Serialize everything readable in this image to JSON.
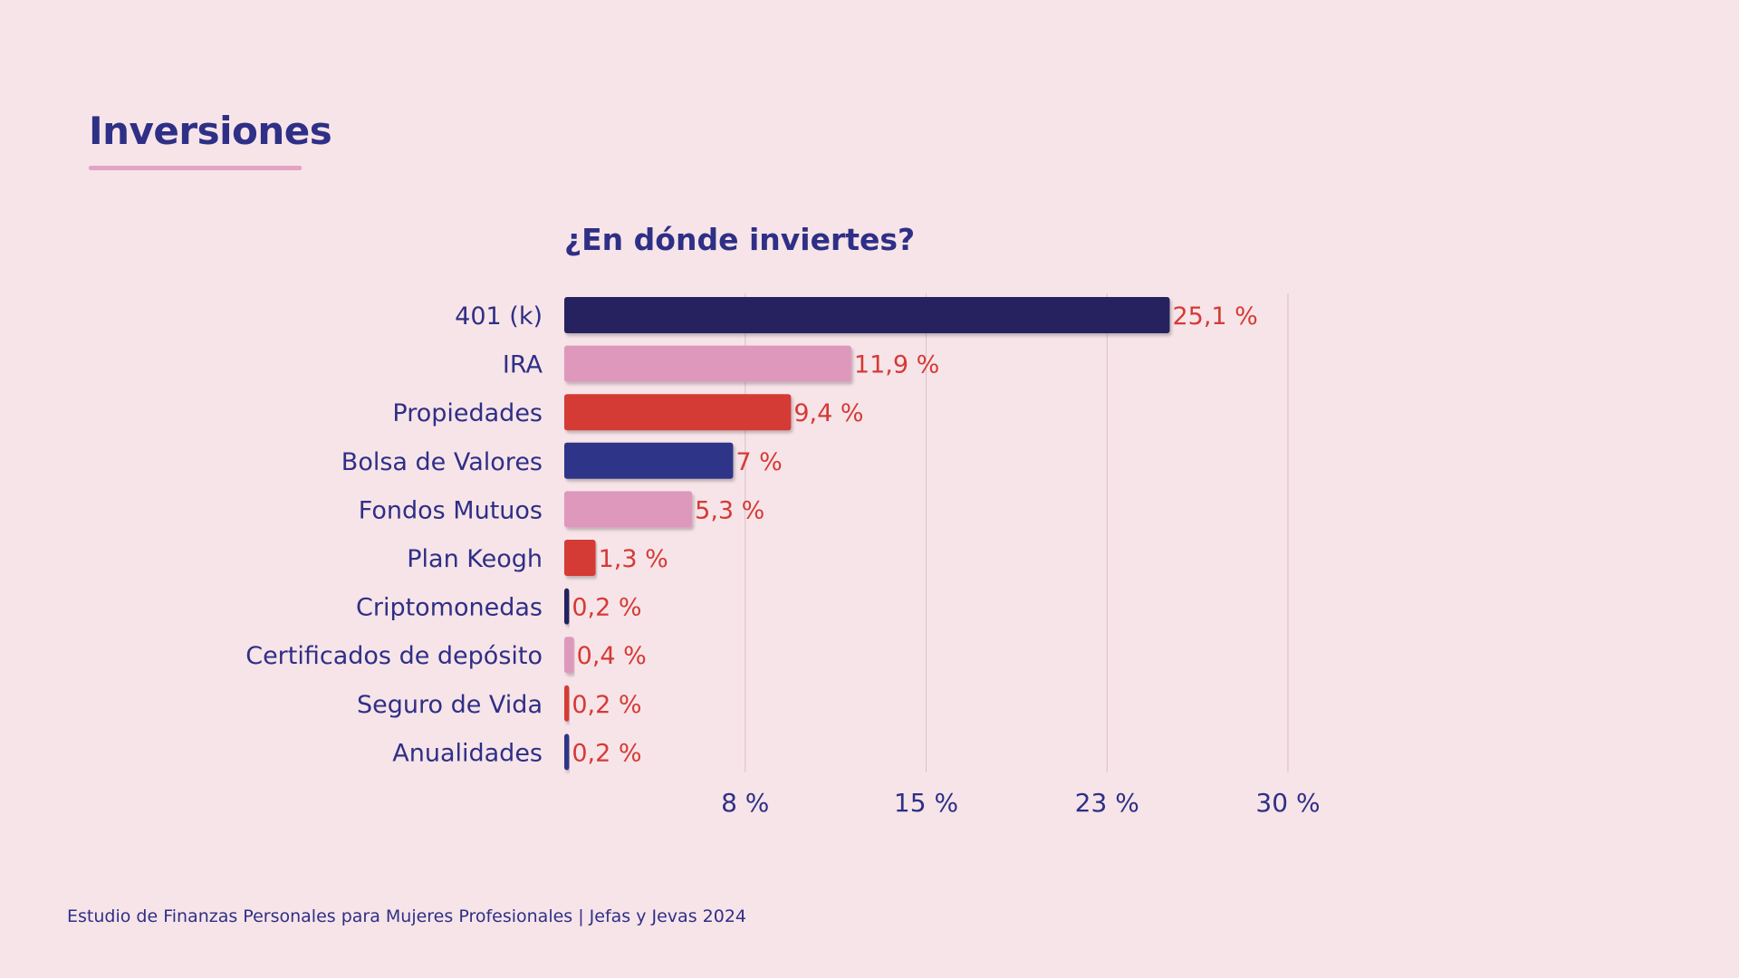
{
  "page": {
    "title": "Inversiones",
    "footer": "Estudio de Finanzas Personales para Mujeres Profesionales | Jefas y Jevas 2024"
  },
  "colors": {
    "background": "#f7e4e8",
    "text": "#2e2f86",
    "value_label": "#d53a35",
    "grid": "#d9c0c8"
  },
  "chart_data": {
    "type": "bar",
    "orientation": "horizontal",
    "title": "¿En dónde inviertes?",
    "xlabel": "",
    "ylabel": "",
    "xlim": [
      0,
      30
    ],
    "grid": true,
    "legend": "none",
    "x_ticks": [
      {
        "value": 7.5,
        "label": "8 %"
      },
      {
        "value": 15,
        "label": "15 %"
      },
      {
        "value": 22.5,
        "label": "23 %"
      },
      {
        "value": 30,
        "label": "30 %"
      }
    ],
    "categories": [
      "401 (k)",
      "IRA",
      "Propiedades",
      "Bolsa de Valores",
      "Fondos Mutuos",
      "Plan Keogh",
      "Criptomonedas",
      "Certificados de depósito",
      "Seguro de Vida",
      "Anualidades"
    ],
    "values": [
      25.1,
      11.9,
      9.4,
      7,
      5.3,
      1.3,
      0.2,
      0.4,
      0.2,
      0.2
    ],
    "value_labels": [
      "25,1  %",
      "11,9  %",
      "9,4  %",
      "7  %",
      "5,3  %",
      "1,3  %",
      "0,2  %",
      "0,4  %",
      "0,2  %",
      "0,2  %"
    ],
    "bar_colors": [
      "#27245e",
      "#de98bc",
      "#d53a35",
      "#2e3488",
      "#de98bc",
      "#d53a35",
      "#27245e",
      "#de98bc",
      "#d53a35",
      "#2e3488"
    ]
  }
}
